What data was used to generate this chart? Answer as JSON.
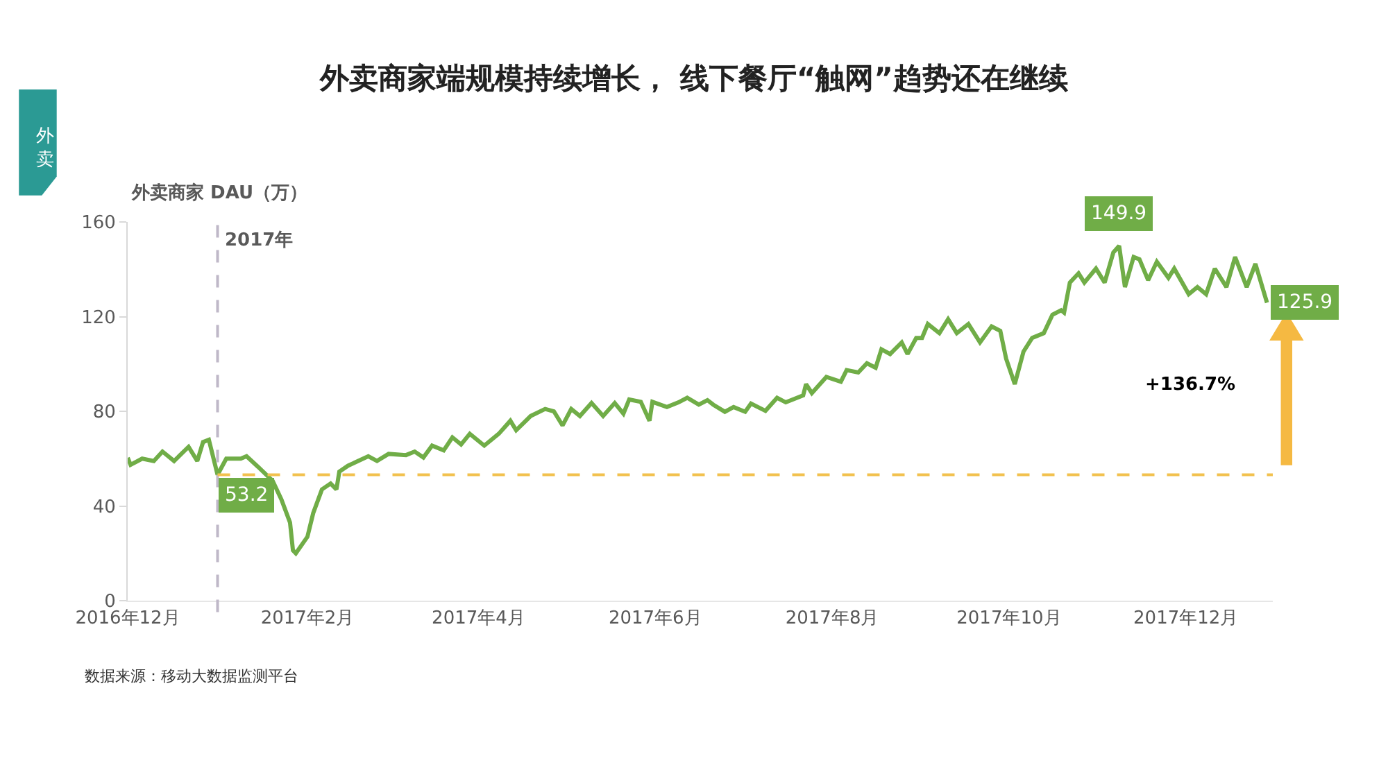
{
  "chart_data": {
    "type": "line",
    "title": "外卖商家端规模持续增长， 线下餐厅“触网”趋势还在继续",
    "ylabel": "外卖商家 DAU（万）",
    "series": [
      {
        "color": "#70ad47",
        "x": [
          "2016-12-01",
          "2016-12-02",
          "2016-12-06",
          "2016-12-10",
          "2016-12-13",
          "2016-12-17",
          "2016-12-22",
          "2016-12-25",
          "2016-12-27",
          "2016-12-29",
          "2017-01-01",
          "2017-01-04",
          "2017-01-09",
          "2017-01-11",
          "2017-01-15",
          "2017-01-20",
          "2017-01-23",
          "2017-01-26",
          "2017-01-27",
          "2017-01-28",
          "2017-02-01",
          "2017-02-03",
          "2017-02-06",
          "2017-02-09",
          "2017-02-11",
          "2017-02-12",
          "2017-02-15",
          "2017-02-22",
          "2017-02-25",
          "2017-03-01",
          "2017-03-07",
          "2017-03-10",
          "2017-03-13",
          "2017-03-16",
          "2017-03-20",
          "2017-03-23",
          "2017-03-26",
          "2017-03-29",
          "2017-04-03",
          "2017-04-08",
          "2017-04-12",
          "2017-04-14",
          "2017-04-19",
          "2017-04-24",
          "2017-04-27",
          "2017-04-30",
          "2017-05-03",
          "2017-05-06",
          "2017-05-10",
          "2017-05-14",
          "2017-05-18",
          "2017-05-21",
          "2017-05-23",
          "2017-05-27",
          "2017-05-30",
          "2017-05-31",
          "2017-06-05",
          "2017-06-09",
          "2017-06-12",
          "2017-06-16",
          "2017-06-19",
          "2017-06-21",
          "2017-06-25",
          "2017-06-28",
          "2017-07-02",
          "2017-07-04",
          "2017-07-09",
          "2017-07-13",
          "2017-07-16",
          "2017-07-22",
          "2017-07-23",
          "2017-07-25",
          "2017-07-30",
          "2017-08-04",
          "2017-08-06",
          "2017-08-10",
          "2017-08-13",
          "2017-08-16",
          "2017-08-18",
          "2017-08-21",
          "2017-08-25",
          "2017-08-27",
          "2017-08-30",
          "2017-09-01",
          "2017-09-03",
          "2017-09-07",
          "2017-09-10",
          "2017-09-13",
          "2017-09-17",
          "2017-09-21",
          "2017-09-25",
          "2017-09-28",
          "2017-09-30",
          "2017-10-03",
          "2017-10-06",
          "2017-10-09",
          "2017-10-13",
          "2017-10-16",
          "2017-10-19",
          "2017-10-20",
          "2017-10-22",
          "2017-10-25",
          "2017-10-27",
          "2017-10-31",
          "2017-11-03",
          "2017-11-06",
          "2017-11-08",
          "2017-11-10",
          "2017-11-13",
          "2017-11-15",
          "2017-11-18",
          "2017-11-21",
          "2017-11-25",
          "2017-11-27",
          "2017-12-02",
          "2017-12-05",
          "2017-12-08",
          "2017-12-11",
          "2017-12-15",
          "2017-12-18",
          "2017-12-22",
          "2017-12-25",
          "2017-12-29"
        ],
        "values": [
          60.4,
          57.4,
          60,
          59,
          63,
          59,
          65,
          59,
          67,
          68,
          53.2,
          60,
          60,
          61,
          56.5,
          50.6,
          42.8,
          33,
          21.3,
          20,
          27,
          37,
          47,
          49.5,
          47,
          54.5,
          57,
          61,
          59,
          62,
          61.5,
          63,
          60.5,
          65.5,
          63.5,
          69,
          66,
          70.5,
          65.5,
          70.5,
          76,
          72,
          78,
          81,
          80,
          74,
          81,
          78,
          83.5,
          78,
          83.5,
          79,
          85,
          84,
          76,
          84,
          81.8,
          83.8,
          85.7,
          82.8,
          84.7,
          82.8,
          79.8,
          81.8,
          79.8,
          83.3,
          80.2,
          85.7,
          83.8,
          86.7,
          91.5,
          87.7,
          94.5,
          92.5,
          97.4,
          96.4,
          100.3,
          98.4,
          106.2,
          104.2,
          109.1,
          104.2,
          111,
          111,
          116.9,
          113,
          118.9,
          113,
          116.9,
          109.1,
          115.9,
          114,
          102.3,
          91.5,
          105.2,
          111,
          113,
          120.8,
          122.7,
          121.7,
          134.4,
          138.3,
          134.4,
          140.3,
          134.4,
          147.1,
          149.9,
          132.5,
          145.2,
          144.2,
          135.4,
          143.2,
          136.4,
          140.3,
          129.5,
          132.5,
          129.5,
          140.3,
          132.5,
          145.2,
          132.5,
          142.3,
          125.9
        ],
        "value_labels": [
          null,
          null,
          null,
          null,
          null,
          null,
          null,
          null,
          null,
          null,
          "53.2",
          null,
          null,
          null,
          null,
          null,
          null,
          null,
          null,
          null,
          null,
          null,
          null,
          null,
          null,
          null,
          null,
          null,
          null,
          null,
          null,
          null,
          null,
          null,
          null,
          null,
          null,
          null,
          null,
          null,
          null,
          null,
          null,
          null,
          null,
          null,
          null,
          null,
          null,
          null,
          null,
          null,
          null,
          null,
          null,
          null,
          null,
          null,
          null,
          null,
          null,
          null,
          null,
          null,
          null,
          null,
          null,
          null,
          null,
          null,
          null,
          null,
          null,
          null,
          null,
          null,
          null,
          null,
          null,
          null,
          null,
          null,
          null,
          null,
          null,
          null,
          null,
          null,
          null,
          null,
          null,
          null,
          null,
          null,
          null,
          null,
          null,
          null,
          null,
          null,
          null,
          null,
          null,
          null,
          null,
          null,
          "149.9",
          null,
          null,
          null,
          null,
          null,
          null,
          null,
          null,
          null,
          null,
          null,
          null,
          null,
          null,
          null,
          "125.9"
        ]
      }
    ],
    "xlim": [
      "2016-12-01",
      "2017-12-31"
    ],
    "xticks": [
      {
        "value": "2016-12-01",
        "label": "2016年12月"
      },
      {
        "value": "2017-02-01",
        "label": "2017年2月"
      },
      {
        "value": "2017-04-01",
        "label": "2017年4月"
      },
      {
        "value": "2017-06-01",
        "label": "2017年6月"
      },
      {
        "value": "2017-08-01",
        "label": "2017年8月"
      },
      {
        "value": "2017-10-01",
        "label": "2017年10月"
      },
      {
        "value": "2017-12-01",
        "label": "2017年12月"
      }
    ],
    "ylim": [
      0,
      160
    ],
    "yticks": [
      0,
      40,
      80,
      120,
      160
    ],
    "marker": "none",
    "line_style": "solid",
    "ref_lines": [
      {
        "axis": "x",
        "value": "2017-01-01",
        "label": "2017年",
        "color": "#bfb8c8",
        "line_style": "dashed"
      },
      {
        "axis": "y",
        "value": 53.2,
        "color": "#f2c14e",
        "line_style": "dashed"
      }
    ],
    "annotations": [
      "外卖",
      "数据来源：移动大数据监测平台",
      "+136.7%"
    ]
  }
}
